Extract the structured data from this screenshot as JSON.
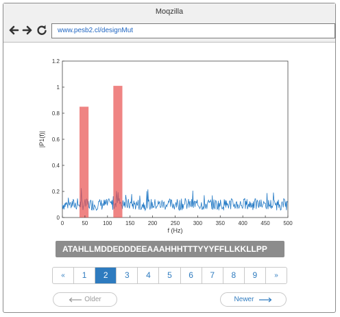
{
  "window": {
    "title": "Moqzilla"
  },
  "browser": {
    "url": "www.pesb2.cl/designMut",
    "icons": [
      "back-arrow-icon",
      "forward-arrow-icon",
      "reload-icon"
    ]
  },
  "chart_data": {
    "type": "line",
    "xlabel": "f (Hz)",
    "ylabel": "|P1(f)|",
    "xlim": [
      0,
      500
    ],
    "ylim": [
      0,
      1.2
    ],
    "xticks": [
      0,
      50,
      100,
      150,
      200,
      250,
      300,
      350,
      400,
      450,
      500
    ],
    "yticks": [
      0,
      0.2,
      0.4,
      0.6,
      0.8,
      1,
      1.2
    ],
    "line_color": "#1f77c4",
    "series_note": "noisy spectrum, baseline about 0.05-0.2 across 0-500 Hz",
    "highlight_bars": [
      {
        "x_center": 48,
        "width": 20,
        "height": 0.85,
        "color": "#e8504f"
      },
      {
        "x_center": 123,
        "width": 20,
        "height": 1.01,
        "color": "#e8504f"
      }
    ]
  },
  "sequence": {
    "text": "ATAHLLMDDEDDDEEAAAHHHTTTYYYFFLLKKLLPP"
  },
  "pagination": {
    "items": [
      "«",
      "1",
      "2",
      "3",
      "4",
      "5",
      "6",
      "7",
      "8",
      "9",
      "»"
    ],
    "active": "2"
  },
  "buttons": {
    "older_label": "Older",
    "newer_label": "Newer"
  }
}
